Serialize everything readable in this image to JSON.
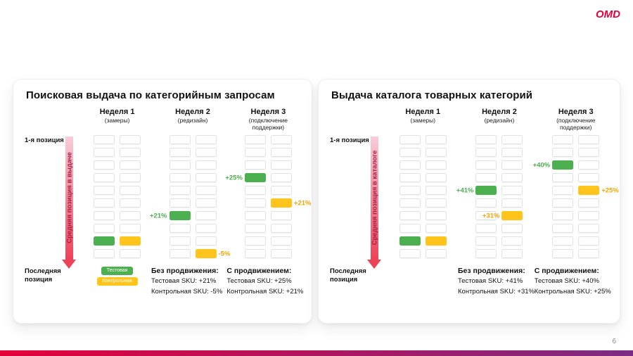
{
  "slide": {
    "logo": "OMD",
    "page_number": "6"
  },
  "colors": {
    "test": "#4caf50",
    "control": "#ffc51c",
    "test_label": "#4caf50",
    "control_label": "#f0a500",
    "arrow_top": "#f8cdd9",
    "arrow_bottom": "#ee4256",
    "arrow_text": "#a62045",
    "bar_left": "#e4003a",
    "bar_right": "#7c2b84"
  },
  "grid": {
    "rows": 10,
    "cols": 2
  },
  "panels": [
    {
      "title": "Поисковая выдача по категорийным запросам",
      "axis": {
        "top": "1-я позиция",
        "bottom": "Последняя позиция",
        "arrow_label": "Средняя позиция в выдаче"
      },
      "legend": [
        {
          "type": "test",
          "label": "Тестовая"
        },
        {
          "type": "control",
          "label": "Контрольная"
        }
      ],
      "weeks": [
        {
          "label": "Неделя 1",
          "sublabel": "(замеры)",
          "markers": [
            {
              "type": "test",
              "row": 8,
              "label": "",
              "side": "left"
            },
            {
              "type": "control",
              "row": 8,
              "label": "",
              "side": "right"
            }
          ]
        },
        {
          "label": "Неделя 2",
          "sublabel": "(редизайн)",
          "markers": [
            {
              "type": "test",
              "row": 6,
              "label": "+21%",
              "side": "left"
            },
            {
              "type": "control",
              "row": 9,
              "label": "-5%",
              "side": "right"
            }
          ],
          "footer_title": "Без продвижения:",
          "footer_lines": [
            "Тестовая SKU: +21%",
            "Контрольная SKU: -5%"
          ]
        },
        {
          "label": "Неделя 3",
          "sublabel": "(подключение поддержки)",
          "markers": [
            {
              "type": "test",
              "row": 3,
              "label": "+25%",
              "side": "left"
            },
            {
              "type": "control",
              "row": 5,
              "label": "+21%",
              "side": "right"
            }
          ],
          "footer_title": "С продвижением:",
          "footer_lines": [
            "Тестовая SKU: +25%",
            "Контрольная SKU: +21%"
          ]
        }
      ]
    },
    {
      "title": "Выдача каталога товарных категорий",
      "axis": {
        "top": "1-я позиция",
        "bottom": "Последняя позиция",
        "arrow_label": "Средняя позиция в каталоге"
      },
      "weeks": [
        {
          "label": "Неделя 1",
          "sublabel": "(замеры)",
          "markers": [
            {
              "type": "test",
              "row": 8,
              "label": "",
              "side": "left"
            },
            {
              "type": "control",
              "row": 8,
              "label": "",
              "side": "right"
            }
          ]
        },
        {
          "label": "Неделя 2",
          "sublabel": "(редизайн)",
          "markers": [
            {
              "type": "test",
              "row": 4,
              "label": "+41%",
              "side": "left"
            },
            {
              "type": "control",
              "row": 6,
              "label": "+31%",
              "side": "left"
            }
          ],
          "footer_title": "Без продвижения:",
          "footer_lines": [
            "Тестовая SKU: +41%",
            "Контрольная SKU: +31%"
          ]
        },
        {
          "label": "Неделя 3",
          "sublabel": "(подключение поддержки)",
          "markers": [
            {
              "type": "test",
              "row": 2,
              "label": "+40%",
              "side": "left"
            },
            {
              "type": "control",
              "row": 4,
              "label": "+25%",
              "side": "right"
            }
          ],
          "footer_title": "С продвижением:",
          "footer_lines": [
            "Тестовая SKU: +40%",
            "Контрольная SKU: +25%"
          ]
        }
      ]
    }
  ],
  "chart_data": [
    {
      "type": "scatter",
      "title": "Поисковая выдача по категорийным запросам",
      "x": [
        "Неделя 1 (замеры)",
        "Неделя 2 (редизайн)",
        "Неделя 3 (подключение поддержки)"
      ],
      "ylabel": "Средняя позиция в выдаче",
      "y_axis_labels": {
        "top": "1-я позиция",
        "bottom": "Последняя позиция"
      },
      "grid": "10 позиций сверху вниз",
      "series": [
        {
          "name": "Тестовая SKU",
          "color": "#4caf50",
          "position_row_1to10": [
            9,
            7,
            4
          ],
          "change_labels": [
            "",
            "+21%",
            "+25%"
          ]
        },
        {
          "name": "Контрольная SKU",
          "color": "#ffc51c",
          "position_row_1to10": [
            9,
            10,
            6
          ],
          "change_labels": [
            "",
            "-5%",
            "+21%"
          ]
        }
      ],
      "annotations": [
        "Без продвижения: Тестовая SKU: +21%, Контрольная SKU: -5%",
        "С продвижением: Тестовая SKU: +25%, Контрольная SKU: +21%"
      ],
      "legend_position": "below week 1"
    },
    {
      "type": "scatter",
      "title": "Выдача каталога товарных категорий",
      "x": [
        "Неделя 1 (замеры)",
        "Неделя 2 (редизайн)",
        "Неделя 3 (подключение поддержки)"
      ],
      "ylabel": "Средняя позиция в каталоге",
      "y_axis_labels": {
        "top": "1-я позиция",
        "bottom": "Последняя позиция"
      },
      "grid": "10 позиций сверху вниз",
      "series": [
        {
          "name": "Тестовая SKU",
          "color": "#4caf50",
          "position_row_1to10": [
            9,
            5,
            3
          ],
          "change_labels": [
            "",
            "+41%",
            "+40%"
          ]
        },
        {
          "name": "Контрольная SKU",
          "color": "#ffc51c",
          "position_row_1to10": [
            9,
            7,
            5
          ],
          "change_labels": [
            "",
            "+31%",
            "+25%"
          ]
        }
      ],
      "annotations": [
        "Без продвижения: Тестовая SKU: +41%, Контрольная SKU: +31%",
        "С продвижением: Тестовая SKU: +40%, Контрольная SKU: +25%"
      ],
      "legend_position": "none"
    }
  ]
}
